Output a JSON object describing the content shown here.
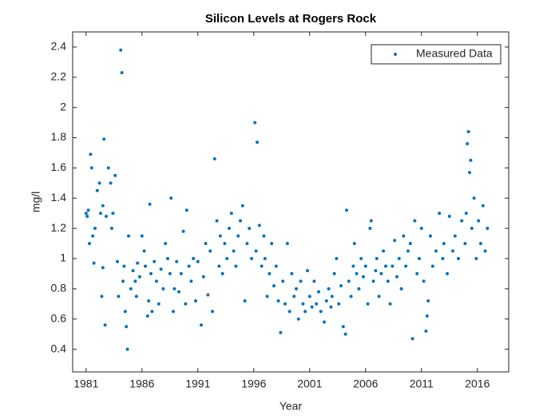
{
  "chart_data": {
    "type": "scatter",
    "title": "Silicon Levels at Rogers Rock",
    "x_label": "Year",
    "y_label": "mg/l",
    "x": [
      1981.0,
      1981.1,
      1981.2,
      1981.3,
      1981.4,
      1981.5,
      1981.6,
      1981.7,
      1981.8,
      1982.0,
      1982.2,
      1982.3,
      1982.4,
      1982.5,
      1982.6,
      1982.7,
      1982.8,
      1982.5,
      1983.0,
      1983.2,
      1983.3,
      1983.4,
      1983.6,
      1983.8,
      1983.9,
      1984.1,
      1984.2,
      1984.3,
      1984.5,
      1984.6,
      1984.7,
      1984.8,
      1984.4,
      1985.0,
      1985.2,
      1985.4,
      1985.6,
      1985.8,
      1985.5,
      1986.0,
      1986.2,
      1986.3,
      1986.5,
      1986.6,
      1986.7,
      1986.8,
      1986.9,
      1987.1,
      1987.3,
      1987.5,
      1987.7,
      1987.9,
      1988.1,
      1988.3,
      1988.5,
      1988.6,
      1988.8,
      1988.9,
      1989.1,
      1989.3,
      1989.5,
      1989.7,
      1989.9,
      1990.0,
      1990.2,
      1990.4,
      1990.6,
      1990.8,
      1991.0,
      1991.3,
      1991.5,
      1991.7,
      1991.9,
      1992.1,
      1992.3,
      1992.5,
      1992.7,
      1992.9,
      1993.0,
      1993.2,
      1993.4,
      1993.6,
      1993.8,
      1994.0,
      1994.2,
      1994.4,
      1994.6,
      1994.8,
      1995.0,
      1995.2,
      1995.4,
      1995.6,
      1995.8,
      1996.1,
      1996.3,
      1996.5,
      1996.2,
      1996.7,
      1996.9,
      1997.0,
      1997.2,
      1997.4,
      1997.6,
      1997.8,
      1998.0,
      1998.2,
      1998.4,
      1998.6,
      1998.8,
      1999.0,
      1999.2,
      1999.4,
      1999.6,
      1999.8,
      2000.0,
      2000.2,
      2000.4,
      2000.6,
      2000.8,
      2001.0,
      2001.2,
      2001.4,
      2001.6,
      2001.8,
      2002.0,
      2002.3,
      2002.5,
      2002.7,
      2002.9,
      2003.0,
      2003.2,
      2003.4,
      2003.6,
      2003.8,
      2004.0,
      2004.2,
      2004.3,
      2004.5,
      2004.7,
      2004.9,
      2005.0,
      2005.2,
      2005.4,
      2005.6,
      2005.8,
      2006.0,
      2006.2,
      2006.4,
      2006.5,
      2006.7,
      2006.9,
      2007.0,
      2007.2,
      2007.4,
      2007.6,
      2007.8,
      2008.0,
      2008.2,
      2008.4,
      2008.6,
      2008.8,
      2009.0,
      2009.2,
      2009.4,
      2009.6,
      2009.8,
      2010.0,
      2010.2,
      2010.4,
      2010.6,
      2010.8,
      2011.0,
      2011.2,
      2011.4,
      2011.5,
      2011.6,
      2011.8,
      2012.0,
      2012.3,
      2012.6,
      2012.9,
      2013.0,
      2013.3,
      2013.5,
      2013.8,
      2014.0,
      2014.3,
      2014.6,
      2014.9,
      2015.0,
      2015.1,
      2015.2,
      2015.3,
      2015.4,
      2015.5,
      2015.7,
      2015.9,
      2016.1,
      2016.3,
      2016.5,
      2016.7,
      2016.9
    ],
    "series": [
      {
        "name": "Measured Data",
        "color": "#0072bd",
        "values": [
          1.3,
          1.28,
          1.32,
          1.1,
          1.69,
          1.6,
          1.15,
          0.97,
          1.2,
          1.45,
          1.5,
          1.3,
          0.75,
          0.94,
          1.79,
          0.56,
          1.28,
          1.35,
          1.6,
          1.5,
          1.2,
          1.3,
          1.55,
          0.98,
          0.75,
          2.38,
          2.23,
          0.85,
          0.65,
          0.55,
          0.4,
          1.15,
          0.95,
          0.8,
          0.92,
          0.85,
          0.97,
          0.88,
          0.75,
          1.15,
          1.05,
          0.95,
          0.62,
          0.72,
          1.36,
          0.9,
          0.65,
          0.98,
          0.85,
          0.7,
          0.93,
          0.8,
          1.1,
          1.0,
          0.9,
          1.4,
          0.65,
          0.8,
          0.98,
          0.78,
          0.9,
          1.18,
          0.7,
          1.32,
          0.95,
          0.85,
          1.0,
          0.72,
          0.98,
          0.56,
          0.88,
          1.1,
          0.76,
          1.05,
          0.65,
          1.66,
          1.25,
          0.95,
          1.15,
          0.9,
          1.1,
          1.0,
          1.2,
          1.3,
          1.05,
          0.95,
          1.15,
          1.25,
          1.35,
          0.72,
          1.1,
          1.2,
          1.0,
          1.9,
          1.77,
          1.22,
          1.05,
          0.95,
          1.15,
          1.0,
          0.75,
          0.9,
          1.1,
          0.82,
          0.95,
          0.72,
          0.51,
          0.85,
          0.7,
          1.1,
          0.65,
          0.9,
          0.75,
          0.8,
          0.6,
          0.85,
          0.7,
          0.65,
          0.92,
          0.75,
          0.68,
          0.85,
          0.7,
          0.78,
          0.65,
          0.58,
          0.72,
          0.8,
          0.68,
          0.75,
          0.9,
          1.0,
          0.7,
          0.82,
          0.55,
          0.5,
          1.32,
          0.85,
          0.75,
          0.95,
          1.1,
          0.9,
          0.8,
          1.0,
          0.88,
          0.95,
          0.7,
          1.2,
          1.25,
          0.85,
          0.92,
          1.0,
          0.75,
          0.9,
          1.05,
          0.95,
          0.85,
          0.7,
          0.95,
          1.12,
          0.88,
          1.0,
          0.8,
          1.15,
          0.95,
          1.05,
          1.1,
          0.47,
          1.25,
          0.9,
          1.0,
          1.2,
          0.85,
          0.52,
          0.62,
          0.72,
          1.15,
          0.95,
          1.05,
          1.3,
          1.0,
          1.1,
          0.9,
          1.28,
          1.05,
          1.15,
          1.0,
          1.25,
          1.1,
          1.3,
          1.76,
          1.84,
          1.57,
          1.65,
          1.2,
          1.4,
          1.0,
          1.25,
          1.1,
          1.35,
          1.05,
          1.2
        ]
      }
    ],
    "xlim": [
      1979.8,
      2018.8
    ],
    "xticks": [
      1981,
      1986,
      1991,
      1996,
      2001,
      2006,
      2011,
      2016
    ],
    "ylim": [
      0.25,
      2.5
    ],
    "yticks": [
      0.4,
      0.6,
      0.8,
      1,
      1.2,
      1.4,
      1.6,
      1.8,
      2,
      2.2,
      2.4
    ],
    "legend": "top-right",
    "grid": false
  }
}
